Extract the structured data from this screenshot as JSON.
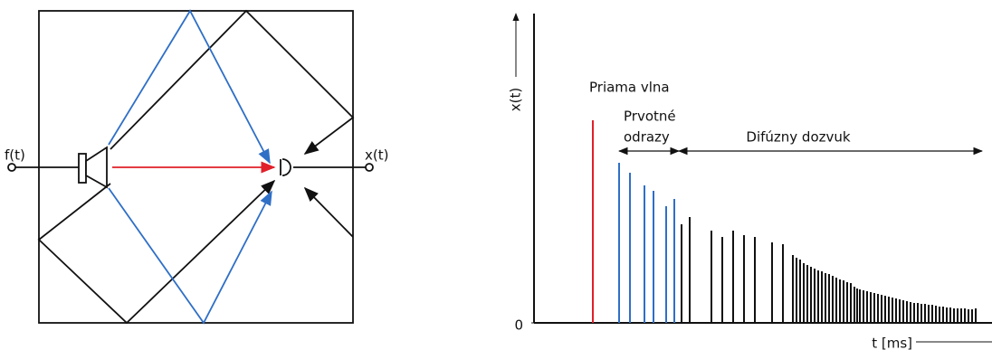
{
  "diagram": {
    "input_label": "f(t)",
    "output_label": "x(t)"
  },
  "chart_data": {
    "type": "impulse",
    "y_label": "x(t)",
    "x_label": "t [ms]",
    "xlim": [
      0,
      506
    ],
    "ylim": [
      0,
      342
    ],
    "yticks": [
      0
    ],
    "annotations": [
      "Priama vlna",
      "Prvotné",
      "odrazy",
      "Difúzny dozvuk"
    ],
    "series": [
      {
        "color": "#e0202a",
        "x": [
          65
        ],
        "values": [
          224
        ]
      },
      {
        "color": "#2f6fc6",
        "x": [
          94,
          106,
          122,
          132,
          146,
          155
        ],
        "values": [
          177,
          166,
          152,
          146,
          129,
          137
        ]
      },
      {
        "color": "#111111",
        "x": [
          163,
          172,
          196,
          208,
          220,
          232,
          244,
          263,
          275,
          286,
          290,
          294,
          298,
          302,
          306,
          310,
          314,
          318,
          322,
          326,
          330,
          334,
          338,
          342,
          346,
          350,
          354,
          357,
          360,
          364,
          368,
          372,
          376,
          380,
          384,
          388,
          392,
          396,
          400,
          404,
          408,
          412,
          416,
          420,
          424,
          428,
          432,
          436,
          440,
          444,
          448,
          452,
          456,
          460,
          464,
          468,
          472,
          476,
          480,
          484,
          488
        ],
        "values": [
          109,
          117,
          102,
          95,
          102,
          97,
          95,
          89,
          87,
          75,
          72,
          70,
          66,
          64,
          62,
          60,
          58,
          57,
          55,
          54,
          52,
          50,
          48,
          47,
          45,
          44,
          40,
          38,
          37,
          36,
          35,
          34,
          33,
          32,
          31,
          30,
          29,
          28,
          27,
          26,
          25,
          24,
          23,
          22,
          22,
          21,
          21,
          20,
          20,
          19,
          18,
          18,
          17,
          17,
          16,
          16,
          16,
          16,
          15,
          15,
          16
        ]
      }
    ]
  }
}
